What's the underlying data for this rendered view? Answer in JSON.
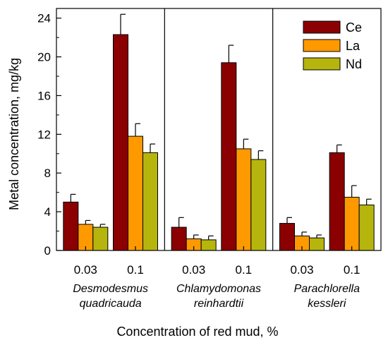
{
  "chart_data": {
    "type": "bar",
    "xlabel": "Concentration of red mud, %",
    "ylabel": "Metal concentration, mg/kg",
    "ylim": [
      0,
      25
    ],
    "yticks": [
      0,
      4,
      8,
      12,
      16,
      20,
      24
    ],
    "legend_position": "top-right",
    "groups": [
      {
        "species": [
          "Desmodesmus",
          "quadricauda"
        ],
        "concentrations": [
          {
            "label": "0.03",
            "values": [
              5.0,
              2.7,
              2.4
            ],
            "errors": [
              0.8,
              0.4,
              0.3
            ]
          },
          {
            "label": "0.1",
            "values": [
              22.3,
              11.8,
              10.1
            ],
            "errors": [
              2.1,
              1.3,
              0.9
            ]
          }
        ]
      },
      {
        "species": [
          "Chlamydomonas",
          "reinhardtii"
        ],
        "concentrations": [
          {
            "label": "0.03",
            "values": [
              2.4,
              1.2,
              1.1
            ],
            "errors": [
              1.0,
              0.4,
              0.4
            ]
          },
          {
            "label": "0.1",
            "values": [
              19.4,
              10.5,
              9.4
            ],
            "errors": [
              1.8,
              1.0,
              0.9
            ]
          }
        ]
      },
      {
        "species": [
          "Parachlorella",
          "kessleri"
        ],
        "concentrations": [
          {
            "label": "0.03",
            "values": [
              2.8,
              1.5,
              1.3
            ],
            "errors": [
              0.6,
              0.4,
              0.3
            ]
          },
          {
            "label": "0.1",
            "values": [
              10.1,
              5.5,
              4.7
            ],
            "errors": [
              0.8,
              1.2,
              0.6
            ]
          }
        ]
      }
    ],
    "series": [
      {
        "name": "Ce",
        "color": "#8b0000"
      },
      {
        "name": "La",
        "color": "#ff9900"
      },
      {
        "name": "Nd",
        "color": "#b5b50e"
      }
    ]
  }
}
